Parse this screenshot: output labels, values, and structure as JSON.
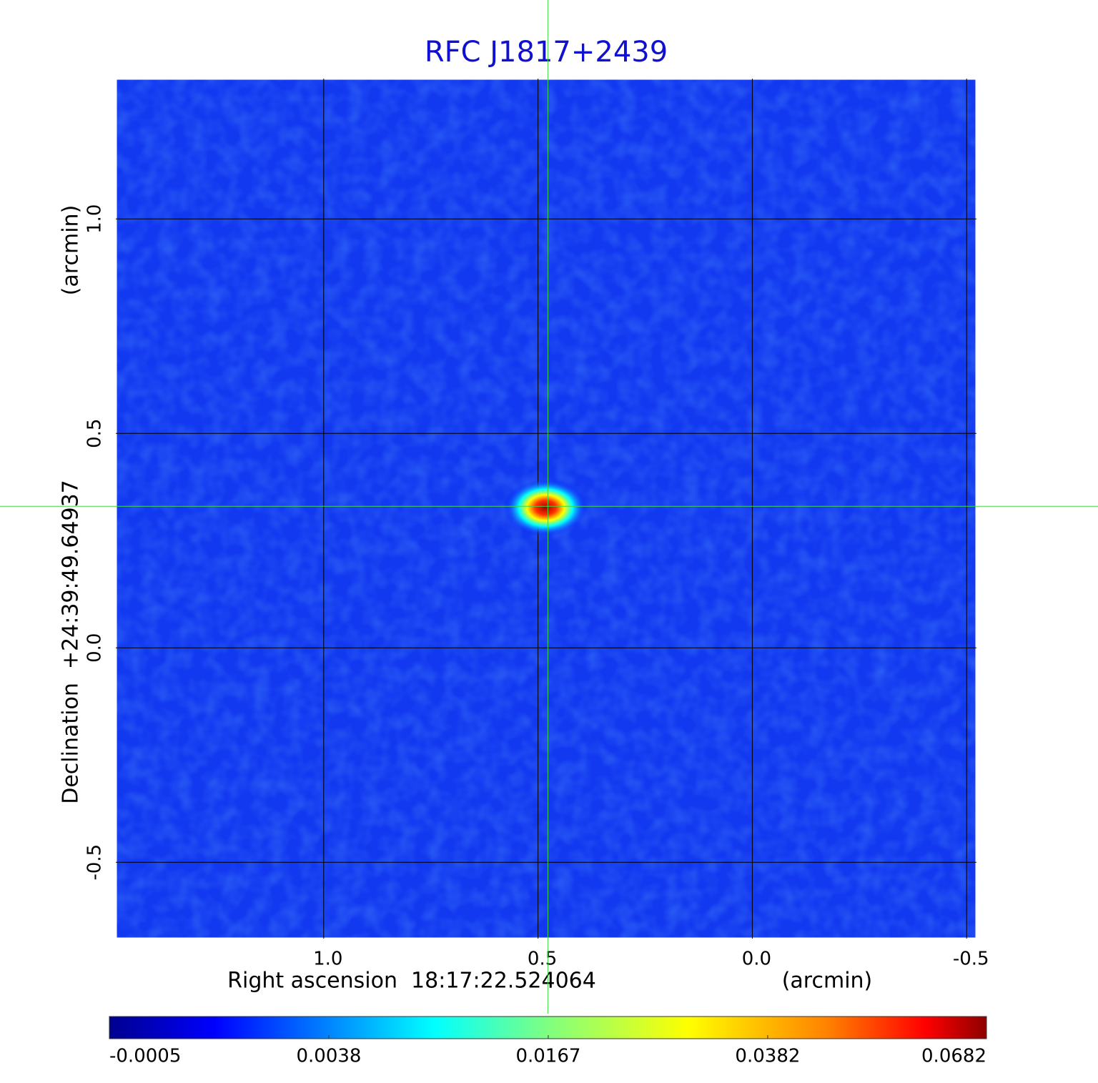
{
  "chart_data": {
    "type": "image",
    "title": "RFC J1817+2439",
    "xlabel": "Right ascension  18:17:22.524064",
    "xunit": "(arcmin)",
    "ylabel": "Declination  +24:39:49.64937",
    "yunit": "(arcmin)",
    "xlim": [
      1.485,
      -0.523
    ],
    "ylim": [
      -0.678,
      1.327
    ],
    "xticks": [
      {
        "value": 1,
        "label": "1.0"
      },
      0.5,
      {
        "value": 0,
        "label": "0.0"
      },
      -0.5
    ],
    "yticks": [
      -0.5,
      {
        "value": 0,
        "label": "0.0"
      },
      0.5,
      {
        "value": 1,
        "label": "1.0"
      }
    ],
    "grid": true,
    "crosshair": {
      "x": 0.477,
      "y": 0.33
    },
    "colorbar": {
      "scale": "sqrt",
      "lim": [
        -0.0005,
        0.0682
      ],
      "ticks": [
        -0.0005,
        0.0038,
        0.0167,
        0.0382,
        0.0682
      ]
    }
  }
}
